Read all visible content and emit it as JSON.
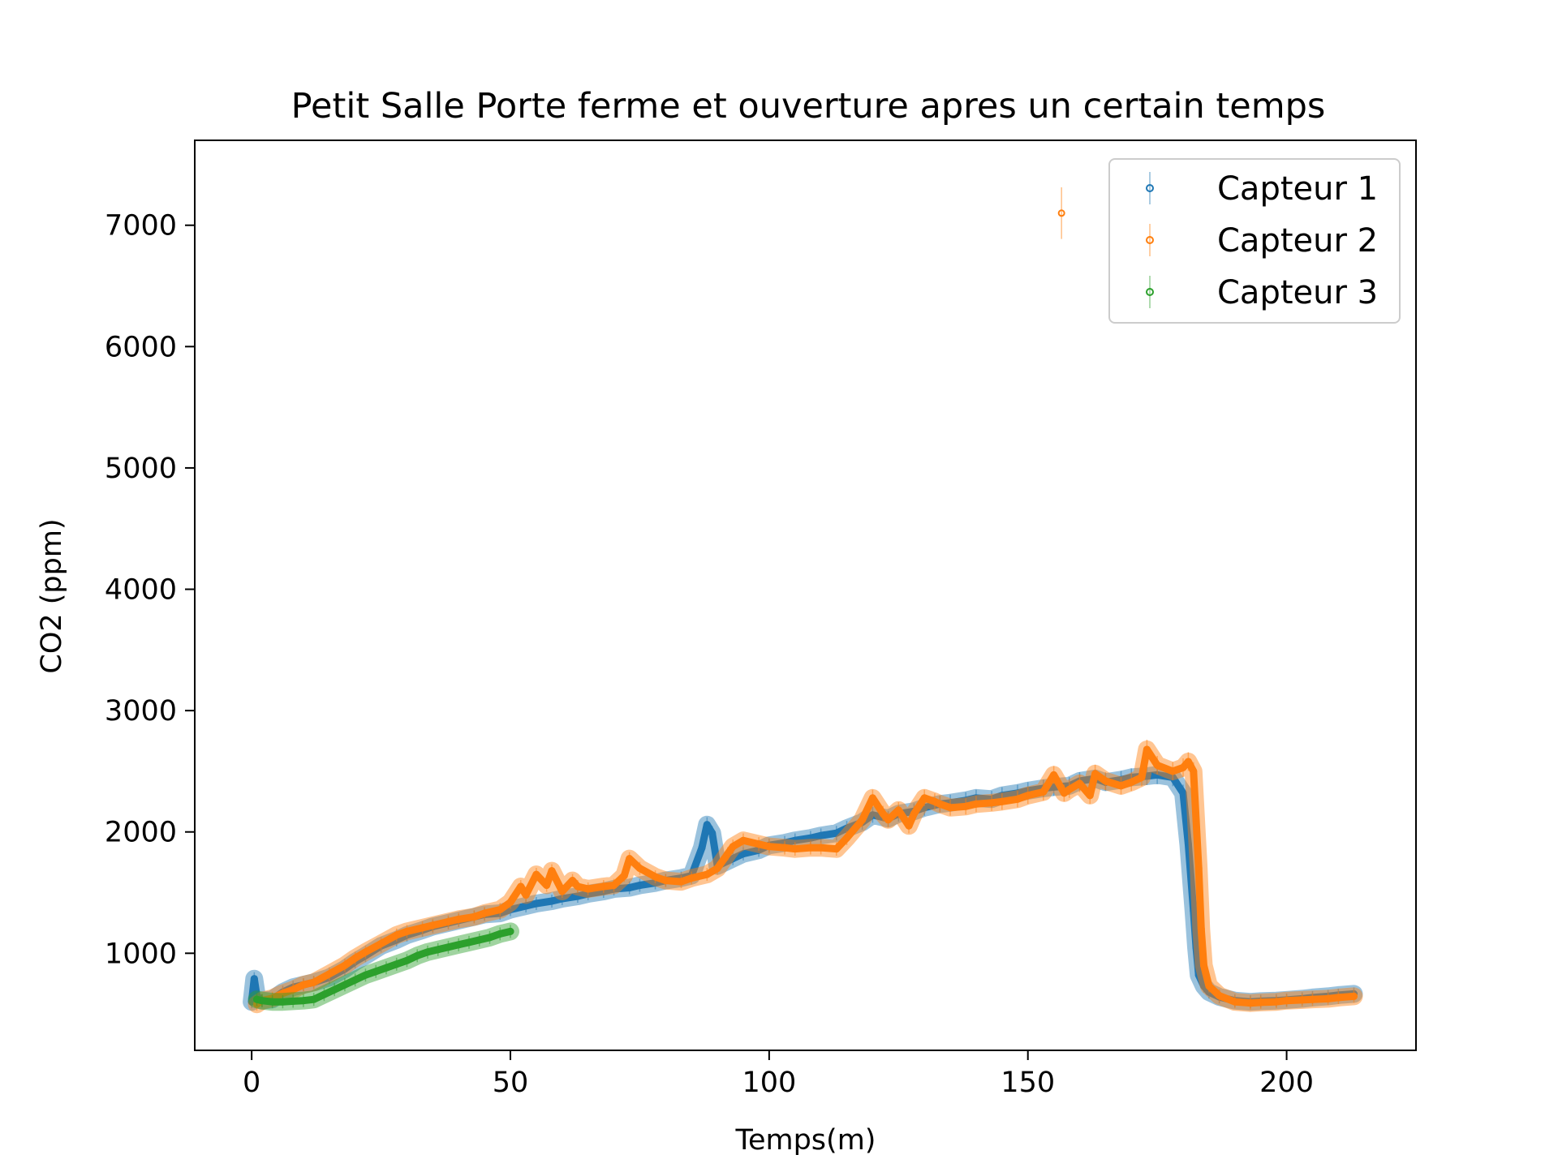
{
  "chart_data": {
    "type": "scatter",
    "title": "Petit Salle Porte ferme et ouverture apres un certain temps",
    "xlabel": "Temps(m)",
    "ylabel": "CO2 (ppm)",
    "xlim": [
      -11,
      225
    ],
    "ylim": [
      200,
      7700
    ],
    "xticks": [
      0,
      50,
      100,
      150,
      200
    ],
    "yticks": [
      1000,
      2000,
      3000,
      4000,
      5000,
      6000,
      7000
    ],
    "grid": false,
    "legend_position": "top-right",
    "series": [
      {
        "name": "Capteur 1",
        "color": "#1f77b4",
        "x": [
          0,
          0.5,
          1,
          2,
          4,
          6,
          8,
          10,
          12,
          15,
          18,
          20,
          22,
          25,
          28,
          30,
          33,
          35,
          38,
          40,
          43,
          45,
          48,
          50,
          53,
          55,
          58,
          60,
          63,
          65,
          68,
          70,
          73,
          75,
          78,
          80,
          83,
          85,
          87,
          88,
          89,
          90,
          93,
          95,
          98,
          100,
          103,
          105,
          108,
          110,
          113,
          115,
          118,
          120,
          123,
          125,
          128,
          130,
          133,
          135,
          138,
          140,
          143,
          145,
          148,
          150,
          153,
          155,
          158,
          160,
          163,
          165,
          168,
          170,
          173,
          175,
          178,
          180,
          181,
          182,
          182.5,
          183,
          184,
          185,
          187,
          190,
          193,
          195,
          198,
          200,
          203,
          205,
          208,
          210,
          213
        ],
        "y": [
          600,
          790,
          650,
          610,
          620,
          680,
          720,
          740,
          760,
          800,
          870,
          930,
          980,
          1060,
          1110,
          1150,
          1190,
          1220,
          1250,
          1270,
          1300,
          1320,
          1330,
          1360,
          1390,
          1410,
          1430,
          1450,
          1470,
          1490,
          1510,
          1530,
          1540,
          1560,
          1580,
          1600,
          1620,
          1640,
          1870,
          2060,
          1990,
          1720,
          1780,
          1820,
          1850,
          1890,
          1910,
          1930,
          1950,
          1970,
          1990,
          2030,
          2080,
          2140,
          2110,
          2150,
          2170,
          2200,
          2230,
          2240,
          2260,
          2280,
          2270,
          2300,
          2320,
          2340,
          2360,
          2370,
          2380,
          2420,
          2440,
          2410,
          2430,
          2450,
          2460,
          2470,
          2450,
          2320,
          1900,
          1350,
          1050,
          820,
          730,
          680,
          640,
          610,
          600,
          605,
          610,
          615,
          625,
          635,
          645,
          655,
          665
        ]
      },
      {
        "name": "Capteur 2",
        "color": "#ff7f0e",
        "x": [
          1,
          2,
          4,
          6,
          8,
          10,
          12,
          15,
          18,
          20,
          22,
          25,
          28,
          30,
          33,
          35,
          38,
          40,
          43,
          45,
          48,
          50,
          52,
          53,
          55,
          57,
          58,
          60,
          62,
          63,
          65,
          68,
          70,
          72,
          73,
          75,
          78,
          80,
          83,
          85,
          88,
          90,
          92,
          93,
          95,
          98,
          100,
          103,
          105,
          108,
          110,
          113,
          115,
          118,
          120,
          122,
          123,
          125,
          127,
          128,
          130,
          132,
          133,
          135,
          138,
          140,
          143,
          145,
          148,
          150,
          153,
          155,
          157,
          158,
          160,
          162,
          163,
          165,
          168,
          170,
          172,
          173,
          175,
          178,
          180,
          181,
          182,
          182.5,
          183,
          183.5,
          184,
          185,
          187,
          190,
          193,
          195,
          198,
          200,
          203,
          205,
          208,
          210,
          213,
          156.5
        ],
        "y": [
          580,
          610,
          630,
          670,
          700,
          740,
          760,
          830,
          900,
          960,
          1010,
          1080,
          1150,
          1180,
          1210,
          1230,
          1260,
          1280,
          1300,
          1330,
          1360,
          1420,
          1550,
          1480,
          1650,
          1560,
          1680,
          1510,
          1600,
          1550,
          1530,
          1550,
          1560,
          1640,
          1780,
          1700,
          1630,
          1600,
          1590,
          1620,
          1650,
          1700,
          1820,
          1880,
          1930,
          1900,
          1880,
          1870,
          1860,
          1870,
          1870,
          1860,
          1950,
          2100,
          2280,
          2150,
          2100,
          2180,
          2050,
          2150,
          2280,
          2250,
          2230,
          2200,
          2210,
          2230,
          2240,
          2250,
          2270,
          2300,
          2330,
          2470,
          2320,
          2350,
          2400,
          2300,
          2480,
          2420,
          2380,
          2410,
          2450,
          2680,
          2550,
          2500,
          2530,
          2580,
          2500,
          2100,
          1700,
          1200,
          900,
          730,
          650,
          600,
          590,
          595,
          600,
          610,
          615,
          620,
          625,
          635,
          645,
          7100
        ]
      },
      {
        "name": "Capteur 3",
        "color": "#2ca02c",
        "x": [
          1,
          2,
          4,
          6,
          8,
          10,
          12,
          14,
          16,
          18,
          20,
          22,
          24,
          26,
          28,
          30,
          32,
          34,
          36,
          38,
          40,
          42,
          44,
          46,
          48,
          50
        ],
        "y": [
          620,
          610,
          600,
          600,
          605,
          610,
          620,
          660,
          700,
          740,
          780,
          820,
          850,
          880,
          910,
          940,
          980,
          1010,
          1030,
          1050,
          1070,
          1090,
          1110,
          1130,
          1160,
          1180
        ]
      }
    ]
  }
}
